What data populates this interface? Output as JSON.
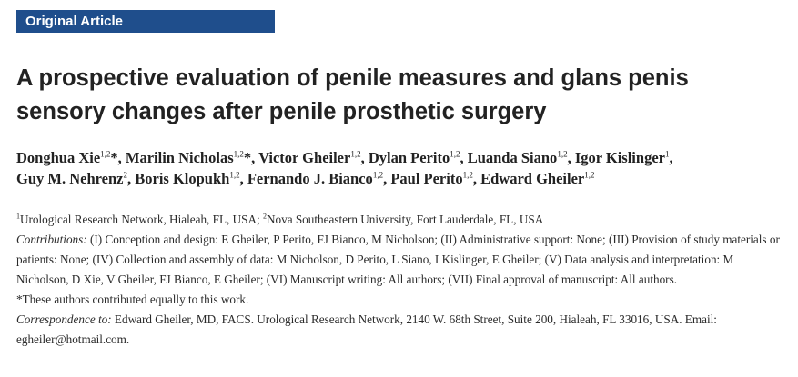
{
  "section_label": "Original Article",
  "title": "A prospective evaluation of penile measures and glans penis sensory changes after penile prosthetic surgery",
  "authors": [
    {
      "name": "Donghua Xie",
      "aff": "1,2",
      "mark": "*",
      "sep": ", "
    },
    {
      "name": "Marilin Nicholas",
      "aff": "1,2",
      "mark": "*",
      "sep": ", "
    },
    {
      "name": "Victor Gheiler",
      "aff": "1,2",
      "mark": "",
      "sep": ", "
    },
    {
      "name": "Dylan Perito",
      "aff": "1,2",
      "mark": "",
      "sep": ", "
    },
    {
      "name": "Luanda Siano",
      "aff": "1,2",
      "mark": "",
      "sep": ", "
    },
    {
      "name": "Igor Kislinger",
      "aff": "1",
      "mark": "",
      "sep": ", "
    },
    {
      "name": "Guy M. Nehrenz",
      "aff": "2",
      "mark": "",
      "sep": ", "
    },
    {
      "name": "Boris Klopukh",
      "aff": "1,2",
      "mark": "",
      "sep": ", "
    },
    {
      "name": "Fernando J. Bianco",
      "aff": "1,2",
      "mark": "",
      "sep": ", "
    },
    {
      "name": "Paul Perito",
      "aff": "1,2",
      "mark": "",
      "sep": ", "
    },
    {
      "name": "Edward Gheiler",
      "aff": "1,2",
      "mark": "",
      "sep": ""
    }
  ],
  "affiliations": {
    "num1": "1",
    "text1": "Urological Research Network, Hialeah, FL, USA; ",
    "num2": "2",
    "text2": "Nova Southeastern University, Fort Lauderdale, FL, USA"
  },
  "contributions": {
    "label": "Contributions:",
    "text": " (I) Conception and design: E Gheiler, P Perito, FJ Bianco, M Nicholson; (II) Administrative support: None; (III) Provision of study materials or patients: None; (IV) Collection and assembly of data: M Nicholson, D Perito, L Siano, I Kislinger, E Gheiler; (V) Data analysis and interpretation: M Nicholson, D Xie, V Gheiler, FJ Bianco, E Gheiler; (VI) Manuscript writing: All authors; (VII) Final approval of manuscript: All authors."
  },
  "equal_contribution_note": "*These authors contributed equally to this work.",
  "correspondence": {
    "label": "Correspondence to:",
    "text": " Edward Gheiler, MD, FACS. Urological Research Network, 2140 W. 68th Street, Suite 200, Hialeah, FL 33016, USA. Email: egheiler@hotmail.com."
  }
}
